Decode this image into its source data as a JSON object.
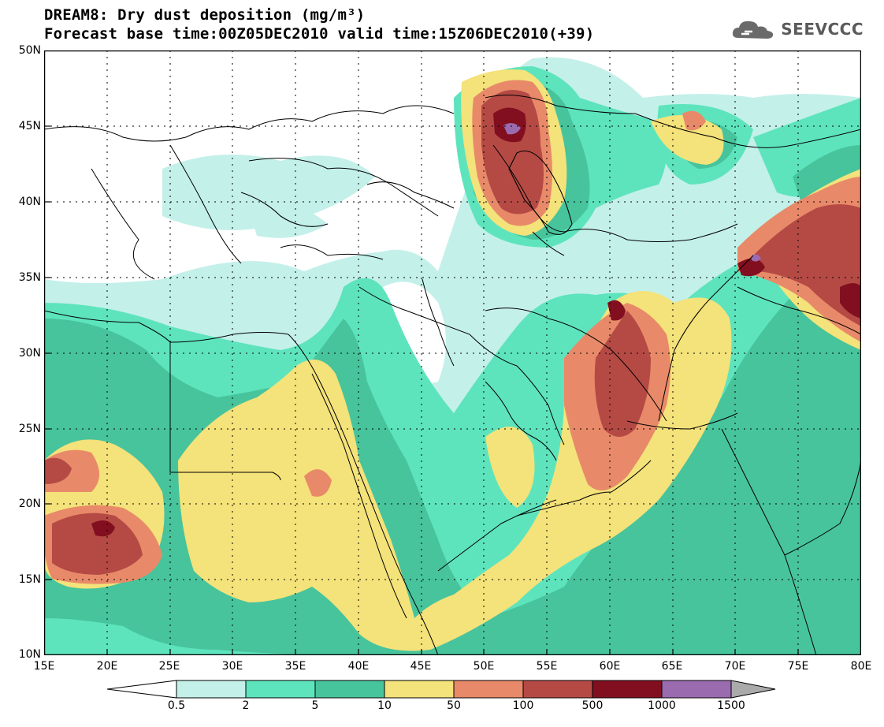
{
  "title_line1": "DREAM8: Dry dust deposition (mg/m³)",
  "title_line2": "Forecast base time:00Z05DEC2010 valid time:15Z06DEC2010(+39)",
  "logo": {
    "text": "SEEVCCC",
    "icon": "cloud-icon"
  },
  "axes": {
    "lat_labels": [
      "50N",
      "45N",
      "40N",
      "35N",
      "30N",
      "25N",
      "20N",
      "15N",
      "10N"
    ],
    "lon_labels": [
      "15E",
      "20E",
      "25E",
      "30E",
      "35E",
      "40E",
      "45E",
      "50E",
      "55E",
      "60E",
      "65E",
      "70E",
      "75E",
      "80E"
    ],
    "lat_range": [
      10,
      50
    ],
    "lon_range": [
      15,
      80
    ],
    "grid": "dotted"
  },
  "colorbar": {
    "labels": [
      "0.5",
      "2",
      "5",
      "10",
      "50",
      "100",
      "500",
      "1000",
      "1500"
    ],
    "colors": [
      "#ffffff",
      "#c4f0ea",
      "#5ee4bd",
      "#47c49c",
      "#f4e27a",
      "#e88a69",
      "#b54a45",
      "#820f1f",
      "#9b6bb0",
      "#aaaaaa"
    ]
  },
  "palette": {
    "c0": "#c4f0ea",
    "c1": "#5ee4bd",
    "c2": "#47c49c",
    "c3": "#f4e27a",
    "c4": "#e88a69",
    "c5": "#b54a45",
    "c6": "#820f1f",
    "c7": "#9b6bb0"
  }
}
